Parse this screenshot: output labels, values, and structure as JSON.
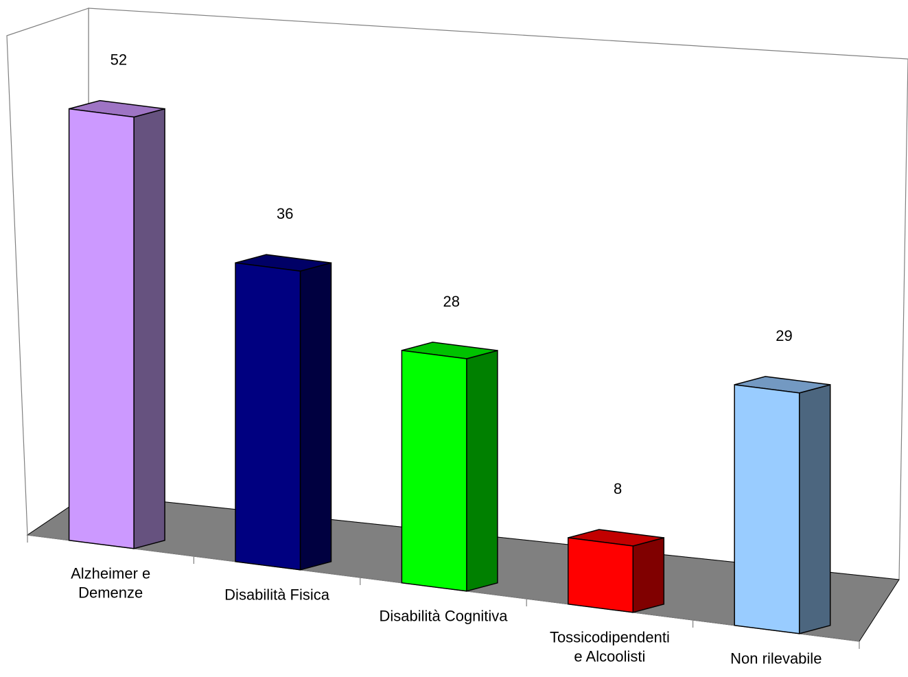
{
  "chart_data": {
    "type": "bar",
    "style": "3d-column",
    "title": "",
    "xlabel": "",
    "ylabel": "",
    "grid": false,
    "legend": "none",
    "categories": [
      [
        "Alzheimer e",
        "Demenze"
      ],
      [
        "Disabilità Fisica"
      ],
      [
        "Disabilità Cognitiva"
      ],
      [
        "Tossicodipendenti",
        "e Alcoolisti"
      ],
      [
        "Non rilevabile"
      ]
    ],
    "values": [
      52,
      36,
      28,
      8,
      29
    ],
    "colors": {
      "front": [
        "#CC99FF",
        "#000080",
        "#00FF00",
        "#FF0000",
        "#99CCFF"
      ],
      "top": [
        "#9E74C4",
        "#000066",
        "#00C200",
        "#C20000",
        "#7399C2"
      ],
      "side": [
        "#66527F",
        "#000040",
        "#008000",
        "#800000",
        "#4C667F"
      ],
      "floor": "#808080",
      "walls": "#ffffff",
      "axis": "#808080"
    }
  }
}
